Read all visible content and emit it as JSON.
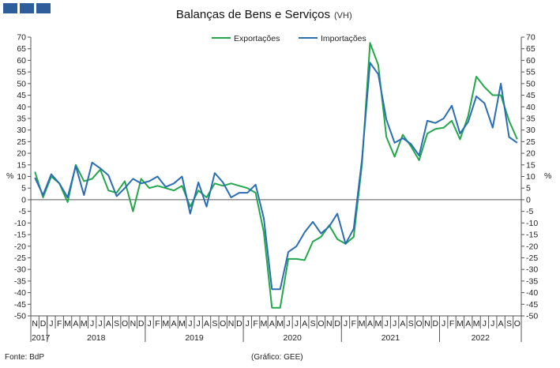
{
  "logo": {
    "name": "gee-logo"
  },
  "title": {
    "main": "Balanças de Bens e Serviços",
    "unit": "(VH)"
  },
  "footer": {
    "source": "Fonte: BdP",
    "credit": "(Gráfico: GEE)"
  },
  "colors": {
    "exports": "#22a84a",
    "imports": "#2a6db5"
  },
  "chart_data": {
    "type": "line",
    "y_unit_label": "%",
    "ylim": [
      -50,
      70
    ],
    "y_ticks": [
      70,
      65,
      60,
      55,
      50,
      45,
      40,
      35,
      30,
      25,
      20,
      15,
      10,
      5,
      0,
      -5,
      -10,
      -15,
      -20,
      -25,
      -30,
      -35,
      -40,
      -45,
      -50
    ],
    "grid": false,
    "legend_position": "top-center",
    "x_month_labels": [
      "N",
      "D",
      "J",
      "F",
      "M",
      "A",
      "M",
      "J",
      "J",
      "A",
      "S",
      "O",
      "N",
      "D",
      "J",
      "F",
      "M",
      "A",
      "M",
      "J",
      "J",
      "A",
      "S",
      "O",
      "N",
      "D",
      "J",
      "F",
      "M",
      "A",
      "M",
      "J",
      "J",
      "A",
      "S",
      "O",
      "N",
      "D",
      "J",
      "F",
      "M",
      "A",
      "M",
      "J",
      "J",
      "A",
      "S",
      "O",
      "N",
      "D",
      "J",
      "F",
      "M",
      "A",
      "M",
      "J",
      "J",
      "A",
      "S",
      "O"
    ],
    "year_groups": [
      {
        "label": "2017",
        "months": 2
      },
      {
        "label": "2018",
        "months": 12
      },
      {
        "label": "2019",
        "months": 12
      },
      {
        "label": "2020",
        "months": 12
      },
      {
        "label": "2021",
        "months": 12
      },
      {
        "label": "2022",
        "months": 10
      }
    ],
    "series": [
      {
        "name": "Exportações",
        "values": [
          12,
          1,
          10,
          7,
          -1,
          15,
          8,
          9,
          13,
          4,
          3,
          8,
          -5,
          9,
          5,
          6,
          5,
          4,
          6,
          -3,
          4,
          1,
          7,
          6,
          7,
          6,
          5,
          3,
          -14,
          -46.5,
          -46.5,
          -25.5,
          -25.5,
          -26,
          -18,
          -16,
          -11,
          -17,
          -19,
          -16,
          15,
          67.5,
          58,
          27,
          18.5,
          28,
          23,
          17,
          28.5,
          30.5,
          31,
          34,
          26,
          36,
          53,
          48.5,
          45,
          45,
          34,
          26
        ]
      },
      {
        "name": "Importações",
        "values": [
          9.5,
          2,
          11,
          7,
          1,
          14.5,
          2,
          16,
          13.5,
          10.5,
          1.5,
          5,
          9,
          7,
          8,
          10,
          5.5,
          7,
          10,
          -6,
          7.5,
          -3,
          11.5,
          7.5,
          1,
          3,
          3,
          6.5,
          -8,
          -38.5,
          -38.5,
          -22.5,
          -20,
          -14,
          -9.5,
          -14.5,
          -11.5,
          -6,
          -19,
          -12.5,
          17,
          59,
          54,
          34.5,
          24.5,
          26.5,
          24,
          19,
          34,
          33,
          35,
          40.5,
          28.5,
          33.5,
          44.5,
          41.5,
          31,
          50,
          27,
          24.5
        ]
      }
    ]
  }
}
